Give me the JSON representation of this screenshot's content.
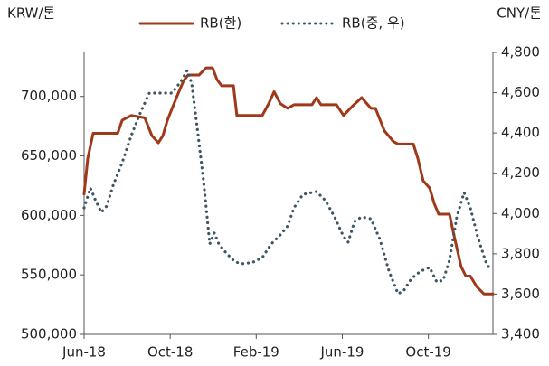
{
  "chart_data": {
    "type": "line",
    "y_label": "KRW/톤",
    "y2_label": "CNY/톤",
    "xlim": [
      0,
      19
    ],
    "xticks": [
      {
        "value": 0,
        "label": "Jun-18"
      },
      {
        "value": 4,
        "label": "Oct-18"
      },
      {
        "value": 8,
        "label": "Feb-19"
      },
      {
        "value": 12,
        "label": "Jun-19"
      },
      {
        "value": 16,
        "label": "Oct-19"
      }
    ],
    "ylim": [
      500000,
      737000
    ],
    "yticks": [
      {
        "value": 500000,
        "label": "500,000"
      },
      {
        "value": 550000,
        "label": "550,000"
      },
      {
        "value": 600000,
        "label": "600,000"
      },
      {
        "value": 650000,
        "label": "650,000"
      },
      {
        "value": 700000,
        "label": "700,000"
      }
    ],
    "y2lim": [
      3400,
      4800
    ],
    "y2ticks": [
      {
        "value": 3400,
        "label": "3,400"
      },
      {
        "value": 3600,
        "label": "3,600"
      },
      {
        "value": 3800,
        "label": "3,800"
      },
      {
        "value": 4000,
        "label": "4,000"
      },
      {
        "value": 4200,
        "label": "4,200"
      },
      {
        "value": 4400,
        "label": "4,400"
      },
      {
        "value": 4600,
        "label": "4,600"
      },
      {
        "value": 4800,
        "label": "4,800"
      }
    ],
    "series": [
      {
        "name": "RB(한)",
        "color": "#a0391a",
        "style": "solid",
        "x": [
          0,
          0.17,
          0.42,
          1.56,
          1.77,
          2.19,
          2.82,
          3.15,
          3.45,
          3.66,
          3.87,
          4.29,
          4.62,
          4.83,
          5.34,
          5.67,
          5.97,
          6.18,
          6.39,
          6.94,
          7.1,
          8.28,
          8.58,
          8.83,
          9.12,
          9.46,
          9.75,
          10.59,
          10.8,
          11.01,
          11.73,
          12.06,
          12.48,
          12.9,
          13.33,
          13.54,
          13.96,
          14.38,
          14.59,
          15.3,
          15.51,
          15.76,
          16.06,
          16.27,
          16.48,
          16.98,
          17.23,
          17.52,
          17.74,
          17.95,
          18.25,
          18.58,
          19
        ],
        "values": [
          618000,
          648000,
          669000,
          669000,
          680000,
          684000,
          682000,
          667000,
          661000,
          667000,
          680000,
          699000,
          713000,
          718000,
          718000,
          724000,
          724000,
          714000,
          709000,
          709000,
          684000,
          684000,
          694000,
          704000,
          694000,
          690000,
          693000,
          693000,
          699000,
          693000,
          693000,
          684000,
          692000,
          699000,
          690000,
          690000,
          671000,
          662000,
          660000,
          660000,
          648000,
          629000,
          623000,
          610000,
          601000,
          601000,
          580000,
          557000,
          549000,
          549000,
          540000,
          534000,
          534000
        ]
      },
      {
        "name": "RB(중, 우)",
        "color": "#3d5666",
        "style": "dotted",
        "axis": "y2",
        "x": [
          0,
          0.29,
          0.5,
          0.8,
          1.05,
          1.35,
          1.77,
          2.19,
          2.61,
          3.03,
          3.45,
          4.08,
          4.5,
          4.79,
          5.0,
          5.25,
          5.55,
          5.84,
          6.05,
          6.26,
          6.6,
          7.02,
          7.44,
          7.86,
          8.28,
          8.7,
          9.12,
          9.46,
          9.75,
          10.17,
          10.8,
          11.22,
          11.64,
          12.06,
          12.27,
          12.57,
          12.9,
          13.33,
          13.75,
          14.17,
          14.59,
          14.84,
          15.22,
          15.64,
          16.06,
          16.39,
          16.69,
          16.98,
          17.32,
          17.66,
          17.95,
          18.29,
          18.67,
          18.92
        ],
        "values": [
          4028,
          4127,
          4073,
          4006,
          4037,
          4140,
          4253,
          4387,
          4499,
          4598,
          4598,
          4598,
          4656,
          4710,
          4647,
          4432,
          4163,
          3849,
          3903,
          3849,
          3804,
          3759,
          3750,
          3759,
          3781,
          3849,
          3894,
          3938,
          4028,
          4095,
          4109,
          4064,
          3983,
          3885,
          3858,
          3961,
          3983,
          3974,
          3871,
          3714,
          3602,
          3615,
          3678,
          3714,
          3732,
          3660,
          3669,
          3768,
          3983,
          4104,
          4028,
          3885,
          3759,
          3714
        ]
      }
    ]
  }
}
